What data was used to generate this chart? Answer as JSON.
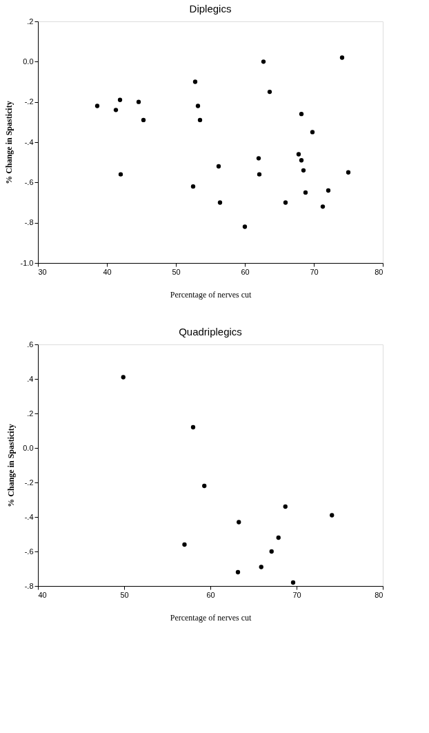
{
  "chart_data": [
    {
      "type": "scatter",
      "title": "Diplegics",
      "xlabel": "Percentage of nerves cut",
      "ylabel": "% Change in Spasticity",
      "x": [
        38.6,
        41.3,
        41.9,
        44.6,
        45.3,
        52.8,
        53.2,
        53.5,
        62.7,
        63.6,
        74.1,
        68.2,
        69.8,
        42.0,
        52.5,
        56.2,
        56.4,
        60.0,
        62.0,
        62.1,
        65.9,
        67.8,
        68.2,
        68.5,
        68.8,
        71.3,
        72.1,
        75.0
      ],
      "series": [
        {
          "color": "#000000",
          "values": [
            -0.22,
            -0.24,
            -0.19,
            -0.2,
            -0.29,
            -0.1,
            -0.22,
            -0.29,
            0.0,
            -0.15,
            0.02,
            -0.26,
            -0.35,
            -0.56,
            -0.62,
            -0.52,
            -0.7,
            -0.82,
            -0.48,
            -0.56,
            -0.7,
            -0.46,
            -0.49,
            -0.54,
            -0.65,
            -0.72,
            -0.64,
            -0.55
          ]
        }
      ],
      "xlim": [
        30,
        80
      ],
      "xticks": [
        30,
        40,
        50,
        60,
        70,
        80
      ],
      "ylim": [
        -1.0,
        0.2
      ],
      "yticks": [
        {
          "value": -1.0,
          "label": "-1.0"
        },
        {
          "value": -0.8,
          "label": "-.8"
        },
        {
          "value": -0.6,
          "label": "-.6"
        },
        {
          "value": -0.4,
          "label": "-.4"
        },
        {
          "value": -0.2,
          "label": "-.2"
        },
        {
          "value": 0.0,
          "label": "0.0"
        },
        {
          "value": 0.2,
          "label": ".2"
        }
      ],
      "grid": false,
      "marker": "circle"
    },
    {
      "type": "scatter",
      "title": "Quadriplegics",
      "xlabel": "Percentage of nerves cut",
      "ylabel": "% Change in Spasticity",
      "x": [
        49.9,
        58.0,
        59.3,
        68.7,
        74.1,
        63.3,
        67.9,
        57.0,
        67.1,
        65.9,
        63.2,
        69.6
      ],
      "series": [
        {
          "color": "#000000",
          "values": [
            0.41,
            0.12,
            -0.22,
            -0.34,
            -0.39,
            -0.43,
            -0.52,
            -0.56,
            -0.6,
            -0.69,
            -0.72,
            -0.78
          ]
        }
      ],
      "xlim": [
        40,
        80
      ],
      "xticks": [
        40,
        50,
        60,
        70,
        80
      ],
      "ylim": [
        -0.8,
        0.6
      ],
      "yticks": [
        {
          "value": -0.8,
          "label": "-.8"
        },
        {
          "value": -0.6,
          "label": "-.6"
        },
        {
          "value": -0.4,
          "label": "-.4"
        },
        {
          "value": -0.2,
          "label": "-.2"
        },
        {
          "value": 0.0,
          "label": "0.0"
        },
        {
          "value": 0.2,
          "label": ".2"
        },
        {
          "value": 0.4,
          "label": ".4"
        },
        {
          "value": 0.6,
          "label": ".6"
        }
      ],
      "grid": false,
      "marker": "circle"
    }
  ]
}
